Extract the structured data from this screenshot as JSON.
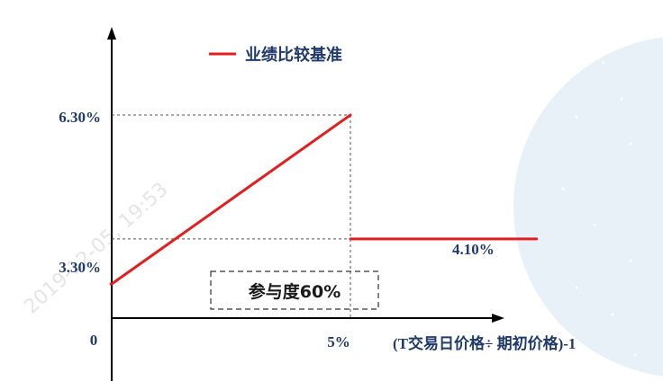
{
  "chart_data": {
    "type": "line",
    "xlabel": "(T交易日价格÷ 期初价格)-1",
    "x_ticks": [
      "0",
      "5%"
    ],
    "y_ticks": [
      "3.30%",
      "6.30%"
    ],
    "series": [
      {
        "name": "业绩比较基准",
        "color": "#e41e1e",
        "segments": [
          [
            {
              "x": -0.016,
              "y": 3.3
            },
            {
              "x": 0.0,
              "y": 3.3
            }
          ],
          [
            {
              "x": 0.0,
              "y": 3.3
            },
            {
              "x": 5.0,
              "y": 6.3
            }
          ],
          [
            {
              "x": 5.0,
              "y": 4.1
            },
            {
              "x": 8.9,
              "y": 4.1
            }
          ]
        ]
      }
    ],
    "annotations": {
      "participation": "参与度60%",
      "step_value": "4.10%"
    },
    "xlim": [
      -0.016,
      8.9
    ],
    "ylim": [
      3.3,
      6.3
    ],
    "grid": false,
    "legend_position": "top"
  },
  "watermark": "2019-12-05, 19:53",
  "colors": {
    "line": "#e41e1e",
    "axis": "#000000",
    "label": "#1f3a6b",
    "guide": "#555555",
    "background_circle": "#e8f0f8"
  }
}
